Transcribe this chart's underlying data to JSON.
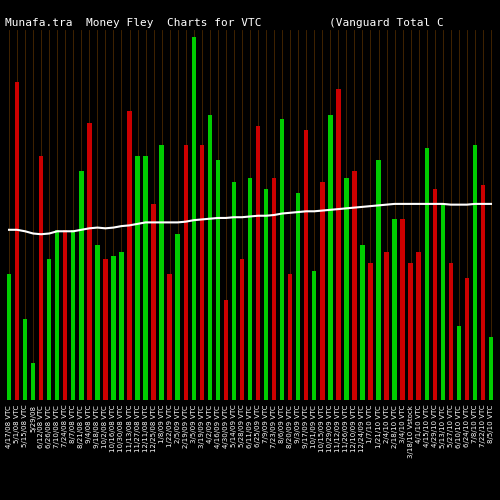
{
  "title": "Munafa.tra  Money Flеy  Charts for VTC          (Vanguard Total C",
  "background_color": "#000000",
  "bar_width": 0.55,
  "categories": [
    "4/17/08 VTC",
    "5/1/08 VTC",
    "5/15/08 VTC",
    "5/29/08",
    "6/12/08 VTC",
    "6/26/08 VTC",
    "7/10/08 VTC",
    "7/24/08 VTC",
    "8/7/08 VTC",
    "8/21/08 VTC",
    "9/4/08 VTC",
    "9/18/08 VTC",
    "10/2/08 VTC",
    "10/16/08 VTC",
    "10/30/08 VTC",
    "11/13/08 VTC",
    "11/27/08 VTC",
    "12/11/08 VTC",
    "12/25/08 VTC",
    "1/8/09 VTC",
    "1/22/09 VTC",
    "2/5/09 VTC",
    "2/19/09 VTC",
    "3/5/09 VTC",
    "3/19/09 VTC",
    "4/2/09 VTC",
    "4/16/09 VTC",
    "4/30/09 VTC",
    "5/14/09 VTC",
    "5/28/09 VTC",
    "6/11/09 VTC",
    "6/25/09 VTC",
    "7/9/09 VTC",
    "7/23/09 VTC",
    "8/6/09 VTC",
    "8/20/09 VTC",
    "9/3/09 VTC",
    "9/17/09 VTC",
    "10/1/09 VTC",
    "10/15/09 VTC",
    "10/29/09 VTC",
    "11/12/09 VTC",
    "11/26/09 VTC",
    "12/10/09 VTC",
    "12/24/09 VTC",
    "1/7/10 VTC",
    "1/21/10 VTC",
    "2/4/10 VTC",
    "2/18/10 VTC",
    "3/4/10 VTC",
    "3/18/10 Vstock",
    "4/1/10 VTC",
    "4/15/10 VTC",
    "4/29/10 VTC",
    "5/13/10 VTC",
    "5/27/10 VTC",
    "6/10/10 VTC",
    "6/24/10 VTC",
    "7/8/10 VTC",
    "7/22/10 VTC",
    "8/5/10 VTC"
  ],
  "values": [
    170,
    430,
    110,
    50,
    330,
    190,
    230,
    230,
    230,
    310,
    375,
    210,
    190,
    195,
    200,
    390,
    330,
    330,
    265,
    345,
    170,
    225,
    345,
    490,
    345,
    385,
    325,
    135,
    295,
    190,
    300,
    370,
    285,
    300,
    380,
    170,
    280,
    365,
    175,
    295,
    385,
    420,
    300,
    310,
    210,
    185,
    325,
    200,
    245,
    245,
    185,
    200,
    340,
    285,
    265,
    185,
    100,
    165,
    345,
    290,
    85
  ],
  "colors": [
    "green",
    "red",
    "green",
    "green",
    "red",
    "green",
    "green",
    "red",
    "green",
    "green",
    "red",
    "green",
    "red",
    "green",
    "green",
    "red",
    "green",
    "green",
    "red",
    "green",
    "red",
    "green",
    "red",
    "green",
    "red",
    "green",
    "green",
    "red",
    "green",
    "red",
    "green",
    "red",
    "green",
    "red",
    "green",
    "red",
    "green",
    "red",
    "green",
    "red",
    "green",
    "red",
    "green",
    "red",
    "green",
    "red",
    "green",
    "red",
    "green",
    "red",
    "red",
    "red",
    "green",
    "red",
    "green",
    "red",
    "green",
    "red",
    "green",
    "red",
    "green"
  ],
  "ma_values": [
    230,
    230,
    228,
    225,
    224,
    225,
    228,
    228,
    228,
    230,
    232,
    233,
    232,
    233,
    235,
    236,
    238,
    240,
    240,
    240,
    240,
    240,
    241,
    243,
    244,
    245,
    246,
    246,
    247,
    247,
    248,
    249,
    249,
    250,
    252,
    253,
    254,
    255,
    255,
    256,
    257,
    258,
    259,
    260,
    261,
    262,
    263,
    264,
    265,
    265,
    265,
    265,
    265,
    265,
    265,
    264,
    264,
    264,
    265,
    265,
    265
  ],
  "green_color": "#00cc00",
  "red_color": "#cc0000",
  "grid_color": "#4a2800",
  "ma_color": "#ffffff",
  "text_color": "#ffffff",
  "title_fontsize": 8,
  "tick_fontsize": 5
}
